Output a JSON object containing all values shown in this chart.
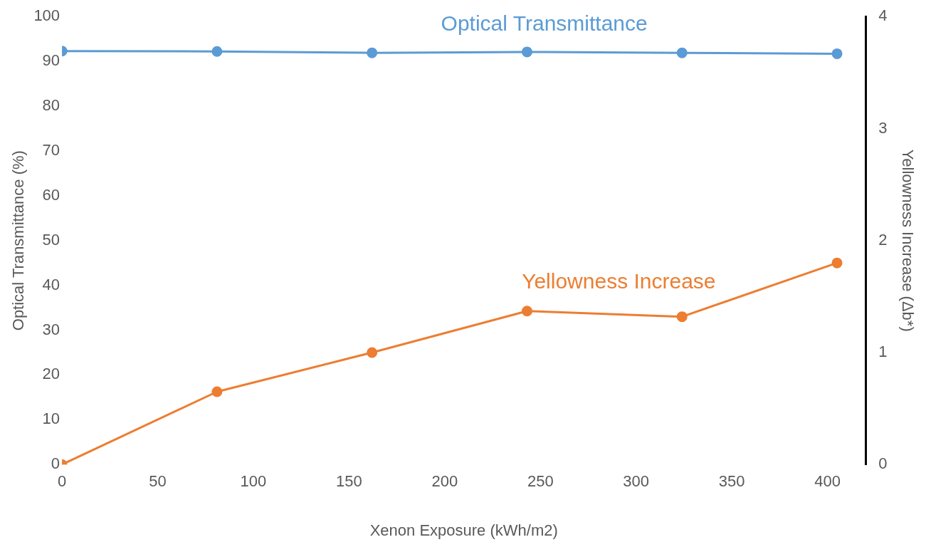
{
  "chart_data": {
    "type": "line",
    "xlabel": "Xenon Exposure (kWh/m2)",
    "ylabel": "Optical Transmittance (%)",
    "y2label": "Yellowness Increase (Δb*)",
    "x": [
      0,
      81,
      162,
      243,
      324,
      405
    ],
    "series": [
      {
        "name": "Optical Transmittance",
        "color": "#5b9bd5",
        "values": [
          92.3,
          92.2,
          91.9,
          92.1,
          91.9,
          91.7
        ]
      },
      {
        "name": "Yellowness Increase",
        "color": "#ed7d31",
        "axis": "y2",
        "values": [
          0,
          0.65,
          1.0,
          1.37,
          1.32,
          1.8
        ]
      }
    ],
    "xlim": [
      0,
      420
    ],
    "xticks": [
      0,
      50,
      100,
      150,
      200,
      250,
      300,
      350,
      400
    ],
    "ylim": [
      0,
      100
    ],
    "yticks": [
      0,
      10,
      20,
      30,
      40,
      50,
      60,
      70,
      80,
      90,
      100
    ],
    "y2lim": [
      0,
      4
    ],
    "y2ticks": [
      0,
      1,
      2,
      3,
      4
    ],
    "grid": false,
    "legend": false,
    "marker": "circle",
    "line_style": "solid"
  }
}
